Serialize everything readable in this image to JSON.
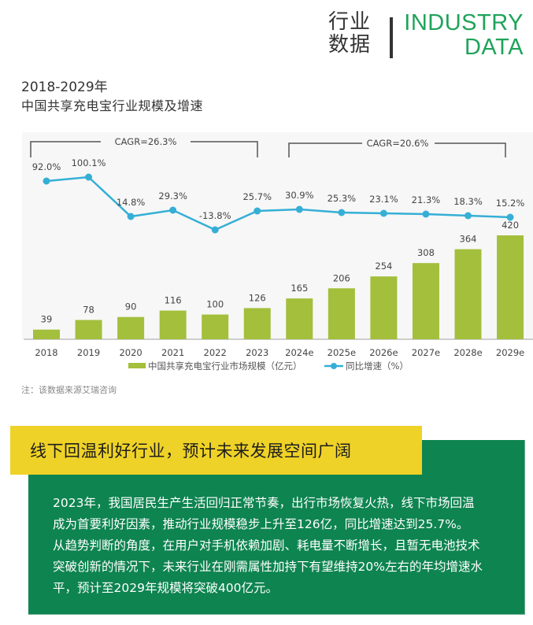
{
  "header": {
    "cn_line1": "行业",
    "cn_line2": "数据",
    "en_line1": "INDUSTRY",
    "en_line2": "DATA"
  },
  "title": {
    "years": "2018-2029年",
    "main": "中国共享充电宝行业规模及增速"
  },
  "colors": {
    "bar": "#a3bf3c",
    "line": "#35afd6",
    "brand_green": "#1fa35a",
    "panel_green": "#0e8450",
    "banner_yellow": "#efd227"
  },
  "chart_data": {
    "type": "bar+line",
    "title": "2018-2029年中国共享充电宝行业规模及增速",
    "categories": [
      "2018",
      "2019",
      "2020",
      "2021",
      "2022",
      "2023",
      "2024e",
      "2025e",
      "2026e",
      "2027e",
      "2028e",
      "2029e"
    ],
    "series": [
      {
        "name": "中国共享充电宝行业市场规模（亿元）",
        "type": "bar",
        "values": [
          39,
          78,
          90,
          116,
          100,
          126,
          165,
          206,
          254,
          308,
          364,
          420
        ]
      },
      {
        "name": "同比增速（%）",
        "type": "line",
        "values": [
          92.0,
          100.1,
          14.8,
          29.3,
          -13.8,
          25.7,
          30.9,
          25.3,
          23.1,
          21.3,
          18.3,
          15.2
        ],
        "labels": [
          "92.0%",
          "100.1%",
          "14.8%",
          "29.3%",
          "-13.8%",
          "25.7%",
          "30.9%",
          "25.3%",
          "23.1%",
          "21.3%",
          "18.3%",
          "15.2%"
        ]
      }
    ],
    "annotations": [
      {
        "text": "CAGR=26.3%",
        "from": "2018",
        "to": "2023"
      },
      {
        "text": "CAGR=20.6%",
        "from": "2024e",
        "to": "2029e"
      }
    ],
    "legend": {
      "position": "bottom",
      "items": [
        "中国共享充电宝行业市场规模（亿元）",
        "同比增速（%）"
      ]
    },
    "grid": false,
    "xlabel": "",
    "ylabel": ""
  },
  "legend": {
    "bar_label": "中国共享充电宝行业市场规模（亿元）",
    "line_label": "同比增速（%）"
  },
  "note": "注：该数据来源艾瑞咨询",
  "banner": {
    "headline": "线下回温利好行业，预计未来发展空间广阔",
    "lines": [
      "2023年，我国居民生产生活回归正常节奏，出行市场恢复火热，线下市场回温",
      "成为首要利好因素，推动行业规模稳步上升至126亿，同比增速达到25.7%。",
      "从趋势判断的角度，在用户对手机依赖加剧、耗电量不断增长，且暂无电池技术",
      "突破创新的情况下，未来行业在刚需属性加持下有望维持20%左右的年均增速水",
      "平，预计至2029年规模将突破400亿元。"
    ]
  }
}
